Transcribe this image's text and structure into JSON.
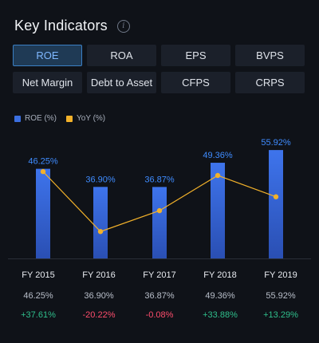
{
  "header": {
    "title": "Key Indicators",
    "info_icon": "info-icon"
  },
  "tabs": [
    {
      "label": "ROE",
      "active": true
    },
    {
      "label": "ROA",
      "active": false
    },
    {
      "label": "EPS",
      "active": false
    },
    {
      "label": "BVPS",
      "active": false
    },
    {
      "label": "Net Margin",
      "active": false
    },
    {
      "label": "Debt to Asset",
      "active": false
    },
    {
      "label": "CFPS",
      "active": false
    },
    {
      "label": "CRPS",
      "active": false
    }
  ],
  "legend": [
    {
      "label": "ROE (%)",
      "color": "#3b6fe0"
    },
    {
      "label": "YoY (%)",
      "color": "#f2b12a"
    }
  ],
  "chart_data": {
    "type": "bar",
    "categories": [
      "FY 2015",
      "FY 2016",
      "FY 2017",
      "FY 2018",
      "FY 2019"
    ],
    "series": [
      {
        "name": "ROE (%)",
        "values": [
          46.25,
          36.9,
          36.87,
          49.36,
          55.92
        ],
        "type": "bar",
        "color": "#3b6fe0"
      },
      {
        "name": "YoY (%)",
        "values": [
          37.61,
          -20.22,
          -0.08,
          33.88,
          13.29
        ],
        "type": "line",
        "color": "#f2b12a"
      }
    ],
    "data_labels": [
      "46.25%",
      "36.90%",
      "36.87%",
      "49.36%",
      "55.92%"
    ]
  },
  "table": {
    "years": [
      "FY 2015",
      "FY 2016",
      "FY 2017",
      "FY 2018",
      "FY 2019"
    ],
    "values": [
      "46.25%",
      "36.90%",
      "36.87%",
      "49.36%",
      "55.92%"
    ],
    "yoy": [
      "+37.61%",
      "-20.22%",
      "-0.08%",
      "+33.88%",
      "+13.29%"
    ]
  },
  "colors": {
    "positive": "#2fbf8c",
    "negative": "#ff4d6d",
    "accent": "#3a7fc4"
  }
}
